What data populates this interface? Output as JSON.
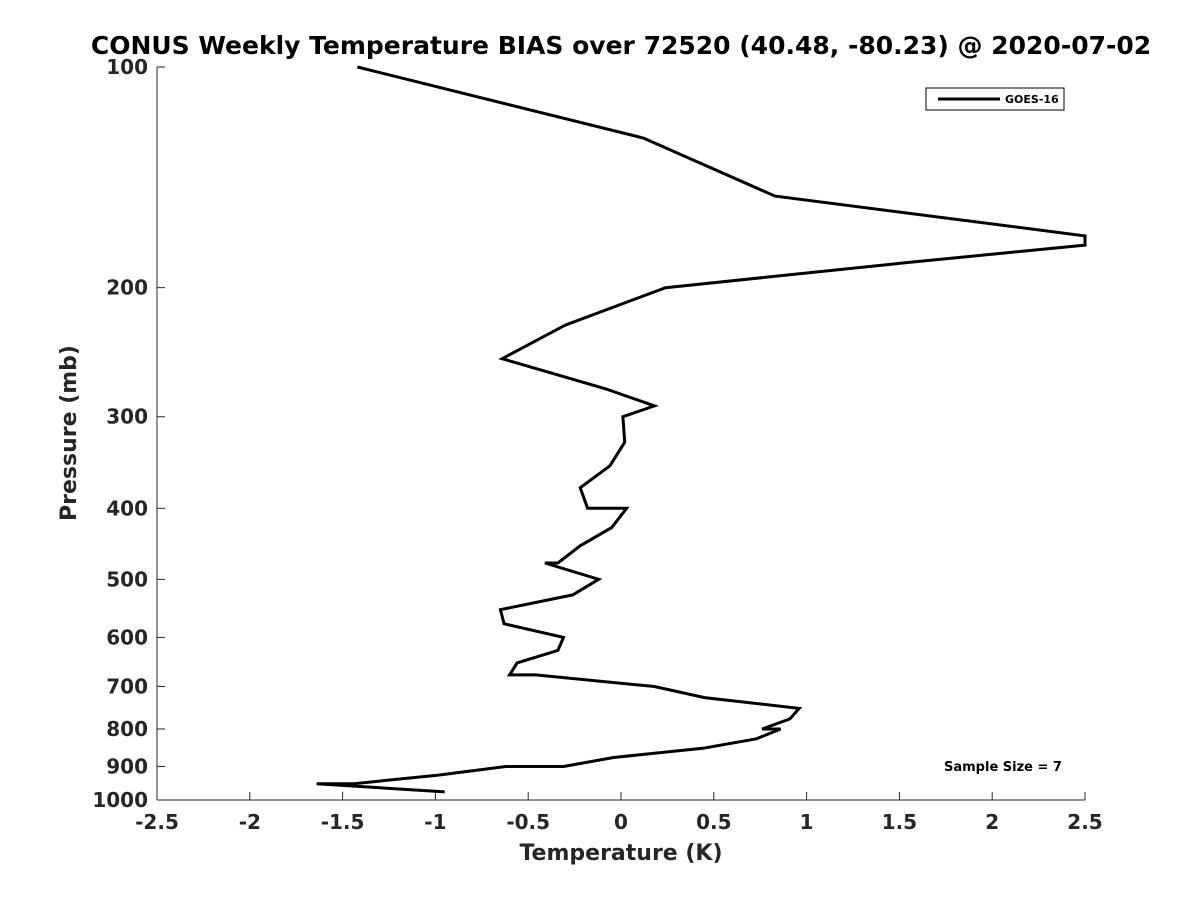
{
  "chart_data": {
    "type": "line",
    "title": "CONUS Weekly Temperature BIAS over 72520 (40.48, -80.23) @ 2020-07-02",
    "xlabel": "Temperature (K)",
    "ylabel": "Pressure (mb)",
    "xlim": [
      -2.5,
      2.5
    ],
    "ylim": [
      100,
      1000
    ],
    "yscale": "log",
    "yreversed": true,
    "x_ticks": [
      "-2.5",
      "-2",
      "-1.5",
      "-1",
      "-0.5",
      "0",
      "0.5",
      "1",
      "1.5",
      "2",
      "2.5"
    ],
    "y_ticks": [
      "100",
      "200",
      "300",
      "400",
      "500",
      "600",
      "700",
      "800",
      "900",
      "1000"
    ],
    "grid": false,
    "legend": {
      "placement": "top-right",
      "entries": [
        "GOES-16"
      ]
    },
    "annotation": "Sample Size = 7",
    "line_color": "#000000",
    "series": [
      {
        "name": "GOES-16",
        "points": [
          {
            "x": -1.42,
            "p": 100
          },
          {
            "x": 0.12,
            "p": 125
          },
          {
            "x": 0.83,
            "p": 150
          },
          {
            "x": 2.5,
            "p": 170
          },
          {
            "x": 2.5,
            "p": 175
          },
          {
            "x": 1.53,
            "p": 185
          },
          {
            "x": 0.24,
            "p": 200
          },
          {
            "x": -0.3,
            "p": 225
          },
          {
            "x": -0.64,
            "p": 250
          },
          {
            "x": -0.08,
            "p": 275
          },
          {
            "x": 0.18,
            "p": 290
          },
          {
            "x": 0.01,
            "p": 300
          },
          {
            "x": 0.02,
            "p": 325
          },
          {
            "x": -0.06,
            "p": 350
          },
          {
            "x": -0.22,
            "p": 375
          },
          {
            "x": -0.18,
            "p": 400
          },
          {
            "x": 0.03,
            "p": 400
          },
          {
            "x": -0.05,
            "p": 425
          },
          {
            "x": -0.22,
            "p": 450
          },
          {
            "x": -0.34,
            "p": 475
          },
          {
            "x": -0.41,
            "p": 475
          },
          {
            "x": -0.12,
            "p": 500
          },
          {
            "x": -0.26,
            "p": 525
          },
          {
            "x": -0.65,
            "p": 550
          },
          {
            "x": -0.63,
            "p": 575
          },
          {
            "x": -0.31,
            "p": 600
          },
          {
            "x": -0.34,
            "p": 625
          },
          {
            "x": -0.56,
            "p": 650
          },
          {
            "x": -0.6,
            "p": 675
          },
          {
            "x": -0.46,
            "p": 675
          },
          {
            "x": 0.18,
            "p": 700
          },
          {
            "x": 0.45,
            "p": 725
          },
          {
            "x": 0.96,
            "p": 750
          },
          {
            "x": 0.91,
            "p": 775
          },
          {
            "x": 0.76,
            "p": 800
          },
          {
            "x": 0.86,
            "p": 800
          },
          {
            "x": 0.73,
            "p": 825
          },
          {
            "x": 0.44,
            "p": 850
          },
          {
            "x": -0.04,
            "p": 875
          },
          {
            "x": -0.31,
            "p": 900
          },
          {
            "x": -0.62,
            "p": 900
          },
          {
            "x": -0.99,
            "p": 925
          },
          {
            "x": -1.44,
            "p": 950
          },
          {
            "x": -1.64,
            "p": 950
          },
          {
            "x": -0.95,
            "p": 975
          }
        ]
      }
    ]
  }
}
